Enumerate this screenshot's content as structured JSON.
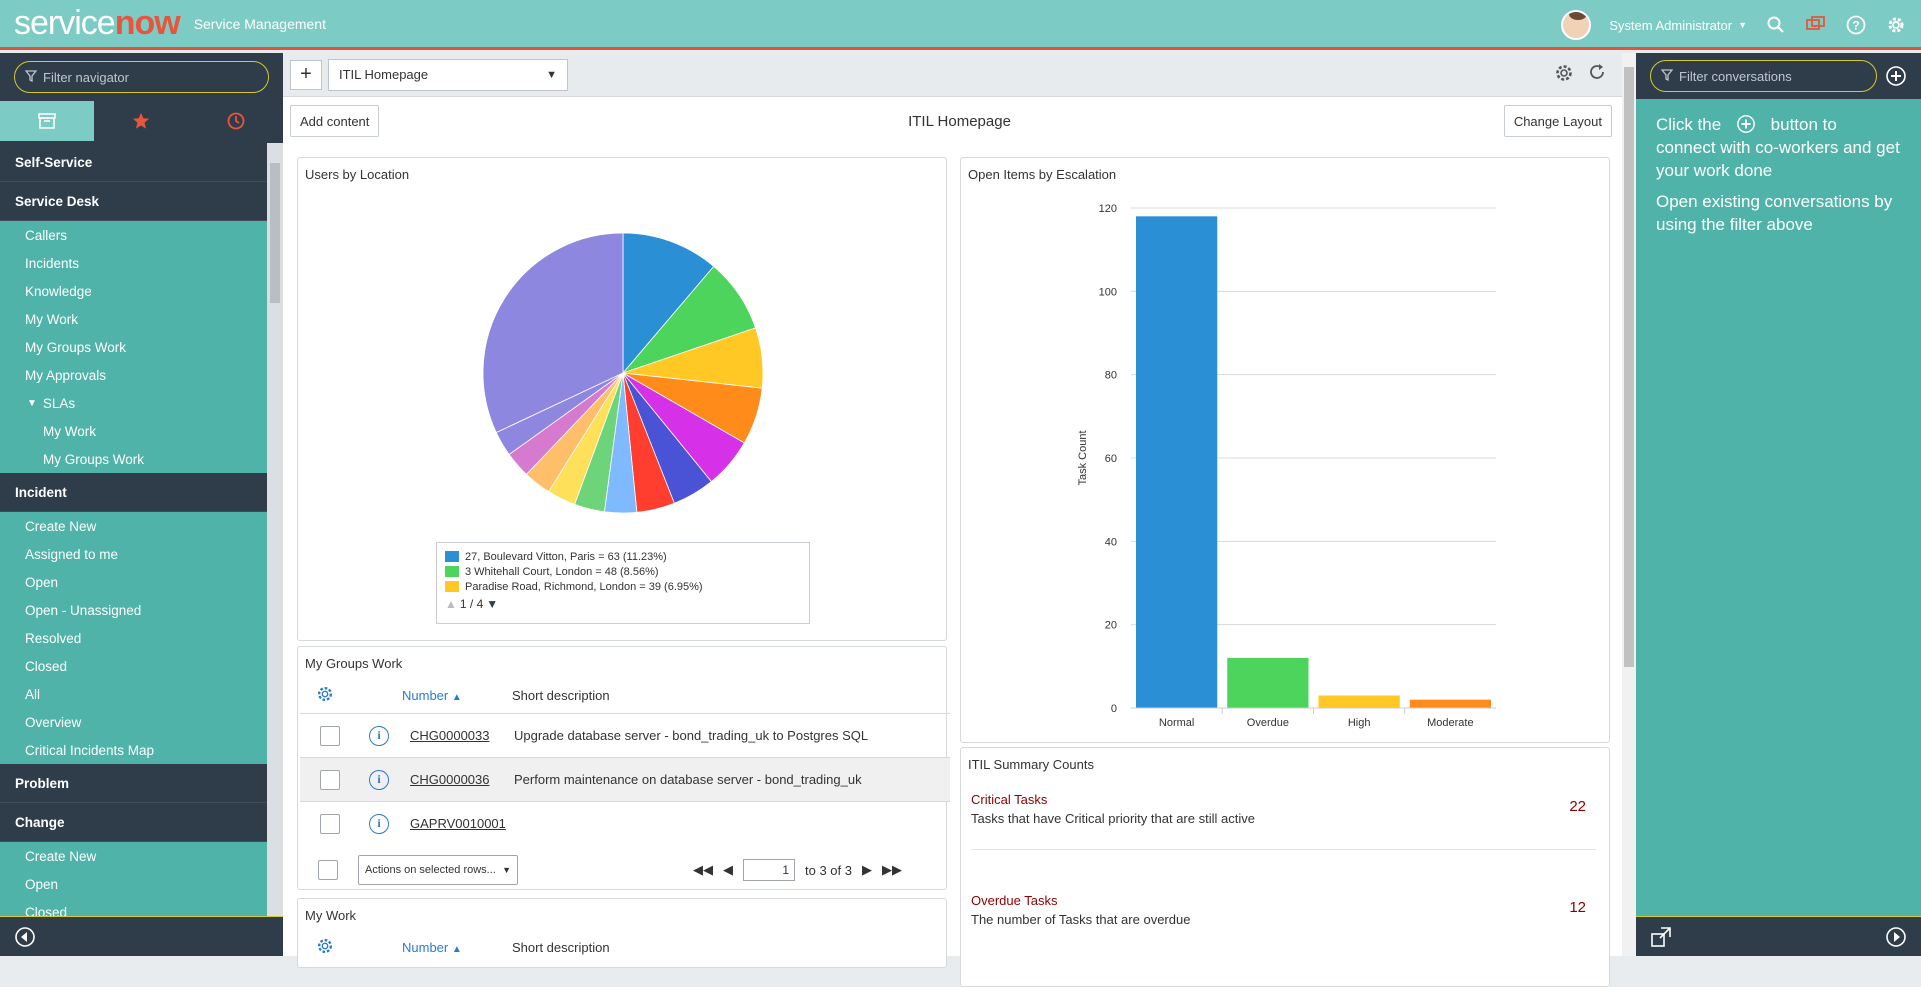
{
  "header": {
    "logo_service": "service",
    "logo_now": "now",
    "app_title": "Service Management",
    "user_name": "System Administrator"
  },
  "navigator": {
    "filter_placeholder": "Filter navigator",
    "sections": [
      {
        "label": "Self-Service"
      },
      {
        "label": "Service Desk"
      },
      {
        "label": "Callers"
      },
      {
        "label": "Incidents"
      },
      {
        "label": "Knowledge"
      },
      {
        "label": "My Work"
      },
      {
        "label": "My Groups Work"
      },
      {
        "label": "My Approvals"
      },
      {
        "label": "SLAs"
      },
      {
        "label": "My Work"
      },
      {
        "label": "My Groups Work"
      },
      {
        "label": "Incident"
      },
      {
        "label": "Create New"
      },
      {
        "label": "Assigned to me"
      },
      {
        "label": "Open"
      },
      {
        "label": "Open - Unassigned"
      },
      {
        "label": "Resolved"
      },
      {
        "label": "Closed"
      },
      {
        "label": "All"
      },
      {
        "label": "Overview"
      },
      {
        "label": "Critical Incidents Map"
      },
      {
        "label": "Problem"
      },
      {
        "label": "Change"
      },
      {
        "label": "Create New"
      },
      {
        "label": "Open"
      },
      {
        "label": "Closed"
      }
    ]
  },
  "toolbar": {
    "page_select": "ITIL Homepage",
    "add_content": "Add content",
    "page_title": "ITIL Homepage",
    "change_layout": "Change Layout"
  },
  "users_by_location": {
    "title": "Users by Location",
    "legend": [
      {
        "label": "27, Boulevard Vitton, Paris = 63 (11.23%)",
        "color": "#2b8fd6"
      },
      {
        "label": "3 Whitehall Court, London = 48 (8.56%)",
        "color": "#4cd45c"
      },
      {
        "label": "Paradise Road, Richmond, London = 39 (6.95%)",
        "color": "#ffc825"
      }
    ],
    "pager": "1 / 4"
  },
  "open_items": {
    "title": "Open Items by Escalation"
  },
  "chart_data": {
    "type": "bar",
    "categories": [
      "Normal",
      "Overdue",
      "High",
      "Moderate"
    ],
    "values": [
      118,
      12,
      3,
      2
    ],
    "colors": [
      "#2b8fd6",
      "#4cd45c",
      "#ffc825",
      "#ff8c1a"
    ],
    "ylabel": "Task Count",
    "ylim": [
      0,
      120
    ],
    "yticks": [
      0,
      20,
      40,
      60,
      80,
      100,
      120
    ]
  },
  "pie_data": {
    "type": "pie",
    "values": [
      11.23,
      8.56,
      6.95,
      6.6,
      5.8,
      4.9,
      4.4,
      3.7,
      3.5,
      3.3,
      3.2,
      3.0,
      2.9,
      32.0
    ],
    "colors": [
      "#2b8fd6",
      "#4cd45c",
      "#ffc825",
      "#ff8c1a",
      "#d631e8",
      "#4a52d6",
      "#ff3e2f",
      "#7fb9ff",
      "#6ed47a",
      "#ffe05a",
      "#ffbe6a",
      "#d67ad0",
      "#8d87e0",
      "#8d87e0"
    ]
  },
  "my_groups_work": {
    "title": "My Groups Work",
    "col_number": "Number",
    "col_desc": "Short description",
    "rows": [
      {
        "number": "CHG0000033",
        "desc": "Upgrade database server - bond_trading_uk to Postgres SQL"
      },
      {
        "number": "CHG0000036",
        "desc": "Perform maintenance on database server - bond_trading_uk"
      },
      {
        "number": "GAPRV0010001",
        "desc": ""
      }
    ],
    "actions": "Actions on selected rows...",
    "page": "1",
    "page_total": "to 3 of 3"
  },
  "my_work": {
    "title": "My Work",
    "col_number": "Number",
    "col_desc": "Short description"
  },
  "summary": {
    "title": "ITIL Summary Counts",
    "items": [
      {
        "title": "Critical Tasks",
        "desc": "Tasks that have Critical priority that are still active",
        "count": "22"
      },
      {
        "title": "Overdue Tasks",
        "desc": "The number of Tasks that are overdue",
        "count": "12"
      }
    ]
  },
  "conversations": {
    "filter_placeholder": "Filter conversations",
    "text_1a": "Click the",
    "text_1b": "button to connect with co-workers and get your work done",
    "text_2": "Open existing conversations by using the filter above"
  }
}
